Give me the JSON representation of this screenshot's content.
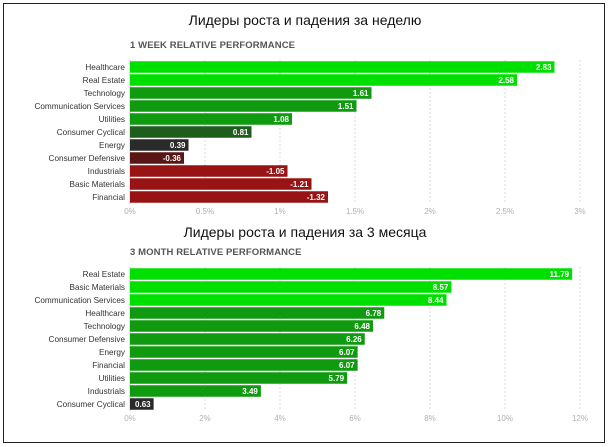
{
  "headings": {
    "week": "Лидеры роста и падения за неделю",
    "quarter": "Лидеры роста и падения за 3 месяца"
  },
  "colors": {
    "neon": "#00e000",
    "green": "#109a10",
    "dark_green": "#1d5e1d",
    "very_dark": "#2a2a2a",
    "dark_red": "#5a1515",
    "red": "#981313",
    "grid": "#d8d8d8",
    "tick": "#b0b0b0",
    "label": "#333333"
  },
  "chart_data": [
    {
      "type": "bar",
      "orientation": "horizontal",
      "title": "1 WEEK RELATIVE PERFORMANCE",
      "categories": [
        "Healthcare",
        "Real Estate",
        "Technology",
        "Communication Services",
        "Utilities",
        "Consumer Cyclical",
        "Energy",
        "Consumer Defensive",
        "Industrials",
        "Basic Materials",
        "Financial"
      ],
      "values": [
        2.83,
        2.58,
        1.61,
        1.51,
        1.08,
        0.81,
        0.39,
        -0.36,
        -1.05,
        -1.21,
        -1.32
      ],
      "value_labels": [
        "2.83",
        "2.58",
        "1.61",
        "1.51",
        "1.08",
        "0.81",
        "0.39",
        "-0.36",
        "-1.05",
        "-1.21",
        "-1.32"
      ],
      "bar_colors": [
        "neon",
        "neon",
        "green",
        "green",
        "green",
        "dark_green",
        "very_dark",
        "dark_red",
        "red",
        "red",
        "red"
      ],
      "xlim": [
        0,
        3
      ],
      "ticks": [
        0,
        0.5,
        1,
        1.5,
        2,
        2.5,
        3
      ],
      "tick_labels": [
        "0%",
        "0.5%",
        "1%",
        "1.5%",
        "2%",
        "2.5%",
        "3%"
      ],
      "grid": true,
      "negative_mode": "magnitude"
    },
    {
      "type": "bar",
      "orientation": "horizontal",
      "title": "3 MONTH RELATIVE PERFORMANCE",
      "categories": [
        "Real Estate",
        "Basic Materials",
        "Communication Services",
        "Healthcare",
        "Technology",
        "Consumer Defensive",
        "Energy",
        "Financial",
        "Utilities",
        "Industrials",
        "Consumer Cyclical"
      ],
      "values": [
        11.79,
        8.57,
        8.44,
        6.78,
        6.48,
        6.26,
        6.07,
        6.07,
        5.79,
        3.49,
        0.63
      ],
      "value_labels": [
        "11.79",
        "8.57",
        "8.44",
        "6.78",
        "6.48",
        "6.26",
        "6.07",
        "6.07",
        "5.79",
        "3.49",
        "0.63"
      ],
      "bar_colors": [
        "neon",
        "neon",
        "neon",
        "green",
        "green",
        "green",
        "green",
        "green",
        "green",
        "green",
        "very_dark"
      ],
      "xlim": [
        0,
        12
      ],
      "ticks": [
        0,
        2,
        4,
        6,
        8,
        10,
        12
      ],
      "tick_labels": [
        "0%",
        "2%",
        "4%",
        "6%",
        "8%",
        "10%",
        "12%"
      ],
      "grid": true,
      "negative_mode": "magnitude"
    }
  ]
}
